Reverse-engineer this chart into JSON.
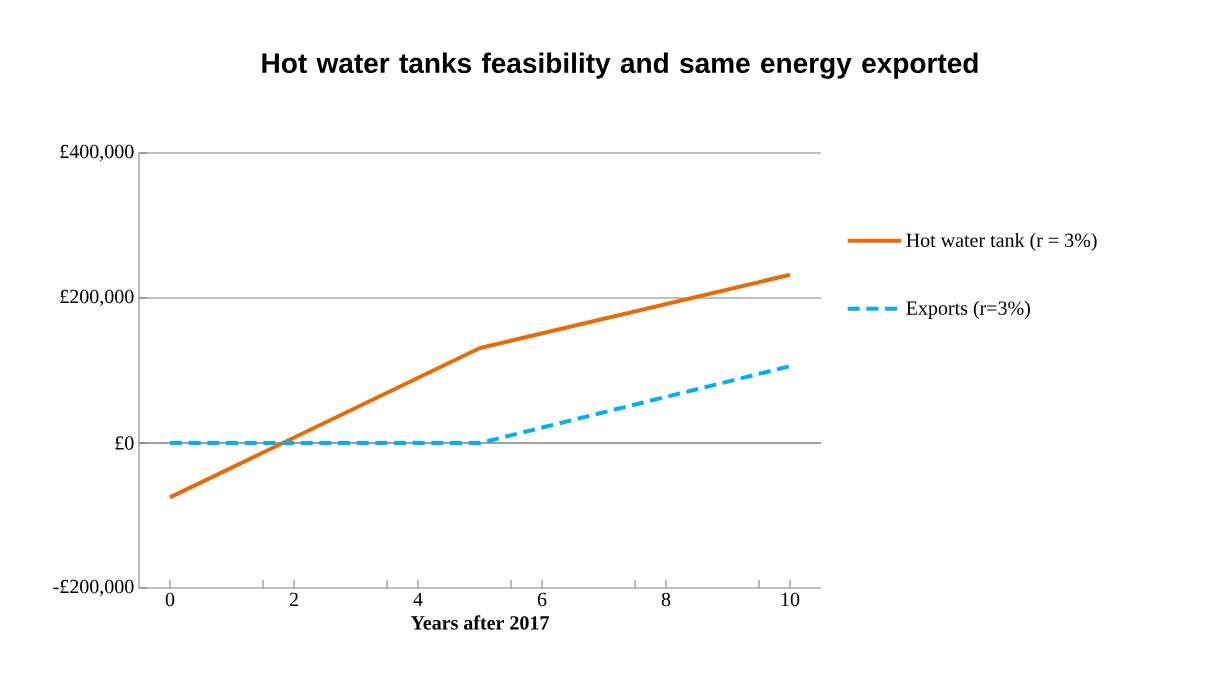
{
  "chart_data": {
    "type": "line",
    "title": "Hot water tanks feasibility and same energy exported",
    "xlabel": "Years after 2017",
    "x": [
      0,
      5,
      10
    ],
    "series": [
      {
        "name": "Hot water tank (r = 3%)",
        "color": "#e46c0a",
        "line_style": "solid",
        "values": [
          -75000,
          131000,
          232000
        ]
      },
      {
        "name": "Exports (r=3%)",
        "color": "#00b0f0",
        "line_style": "dashed",
        "values": [
          0,
          0,
          106000
        ]
      }
    ],
    "xlim": [
      -0.5,
      10.5
    ],
    "xticks": [
      0,
      {
        "value": 1.5,
        "label": null
      },
      2,
      {
        "value": 3.5,
        "label": null
      },
      4,
      {
        "value": 5.5,
        "label": null
      },
      6,
      {
        "value": 7.5,
        "label": null
      },
      8,
      {
        "value": 9.5,
        "label": null
      },
      10
    ],
    "ylim": [
      -200000,
      400000
    ],
    "yticks": [
      {
        "value": -200000,
        "label": "-£200,000"
      },
      {
        "value": 0,
        "label": "£0"
      },
      {
        "value": 200000,
        "label": "£200,000"
      },
      {
        "value": 400000,
        "label": "£400,000"
      }
    ],
    "grid": "y",
    "legend": "right"
  }
}
